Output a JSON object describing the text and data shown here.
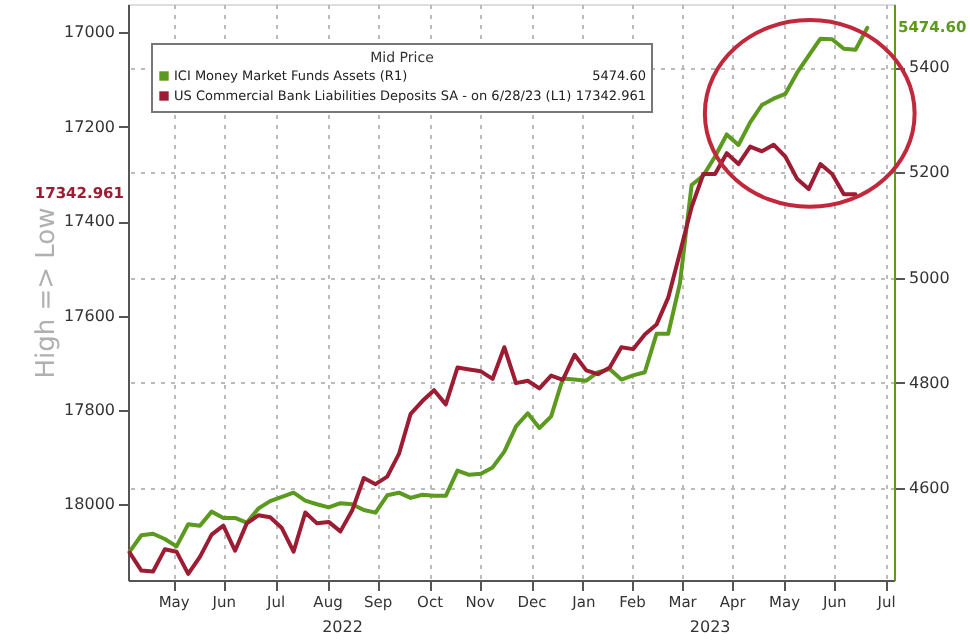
{
  "chart_data": {
    "type": "line",
    "ylabel": "High => Low",
    "legend_title": "Mid Price",
    "legend": "top left",
    "grid": true,
    "line_style": "solid",
    "x": [
      "2022-04-20",
      "2022-04-27",
      "2022-05-04",
      "2022-05-11",
      "2022-05-18",
      "2022-05-25",
      "2022-06-01",
      "2022-06-08",
      "2022-06-15",
      "2022-06-22",
      "2022-06-29",
      "2022-07-06",
      "2022-07-13",
      "2022-07-20",
      "2022-07-27",
      "2022-08-03",
      "2022-08-10",
      "2022-08-17",
      "2022-08-24",
      "2022-08-31",
      "2022-09-07",
      "2022-09-14",
      "2022-09-21",
      "2022-09-28",
      "2022-10-05",
      "2022-10-12",
      "2022-10-19",
      "2022-10-26",
      "2022-11-02",
      "2022-11-09",
      "2022-11-16",
      "2022-11-23",
      "2022-11-30",
      "2022-12-07",
      "2022-12-14",
      "2022-12-21",
      "2022-12-28",
      "2023-01-04",
      "2023-01-11",
      "2023-01-18",
      "2023-01-25",
      "2023-02-01",
      "2023-02-08",
      "2023-02-15",
      "2023-02-22",
      "2023-03-01",
      "2023-03-08",
      "2023-03-15",
      "2023-03-22",
      "2023-03-29",
      "2023-04-05",
      "2023-04-12",
      "2023-04-19",
      "2023-04-26",
      "2023-05-03",
      "2023-05-10",
      "2023-05-17",
      "2023-05-24",
      "2023-05-31",
      "2023-06-07",
      "2023-06-14",
      "2023-06-21",
      "2023-06-28",
      "2023-07-05"
    ],
    "series": [
      {
        "name": "ICI Money Market Funds Assets  (R1)",
        "color": "#5b9a1f",
        "axis": "y2",
        "values": [
          4479,
          4510,
          4513,
          4503,
          4489,
          4531,
          4528,
          4555,
          4543,
          4543,
          4534,
          4561,
          4575,
          4583,
          4591,
          4576,
          4569,
          4563,
          4571,
          4569,
          4558,
          4553,
          4586,
          4591,
          4581,
          4587,
          4585,
          4585,
          4633,
          4625,
          4627,
          4639,
          4669,
          4717,
          4742,
          4714,
          4736,
          4808,
          4806,
          4804,
          4820,
          4826,
          4806,
          4814,
          4820,
          4893,
          4893,
          4989,
          5176,
          5194,
          5230,
          5272,
          5252,
          5295,
          5328,
          5340,
          5349,
          5389,
          5422,
          5454,
          5453,
          5435,
          5433,
          5474.6
        ]
      },
      {
        "name": "US Commercial Bank Liabilities Deposits SA -  on 6/28/23  (L1)",
        "color": "#9b1c33",
        "values": [
          18102,
          18140,
          18142,
          18095,
          18100,
          18147,
          18111,
          18064,
          18045,
          18098,
          18040,
          18023,
          18027,
          18050,
          18100,
          18017,
          18040,
          18037,
          18057,
          18013,
          17944,
          17957,
          17941,
          17893,
          17808,
          17781,
          17758,
          17788,
          17710,
          17714,
          17718,
          17734,
          17667,
          17743,
          17738,
          17754,
          17727,
          17736,
          17683,
          17716,
          17724,
          17710,
          17667,
          17671,
          17640,
          17619,
          17562,
          17467,
          17370,
          17300,
          17300,
          17256,
          17279,
          17242,
          17252,
          17238,
          17263,
          17310,
          17332,
          17279,
          17300,
          17343,
          17342.961,
          null
        ]
      }
    ],
    "xlim": [
      "2022-04-19",
      "2023-07-21"
    ],
    "xticks": [
      {
        "value": "2022-05-16",
        "label": "May"
      },
      {
        "value": "2022-06-15",
        "label": "Jun"
      },
      {
        "value": "2022-07-16",
        "label": "Jul"
      },
      {
        "value": "2022-08-16",
        "label": "Aug"
      },
      {
        "value": "2022-09-15",
        "label": "Sep"
      },
      {
        "value": "2022-10-16",
        "label": "Oct"
      },
      {
        "value": "2022-11-15",
        "label": "Nov"
      },
      {
        "value": "2022-12-16",
        "label": "Dec"
      },
      {
        "value": "2023-01-16",
        "label": "Jan"
      },
      {
        "value": "2023-02-14",
        "label": "Feb"
      },
      {
        "value": "2023-03-16",
        "label": "Mar"
      },
      {
        "value": "2023-04-15",
        "label": "Apr"
      },
      {
        "value": "2023-05-16",
        "label": "May"
      },
      {
        "value": "2023-06-15",
        "label": "Jun"
      },
      {
        "value": "2023-07-16",
        "label": "Jul"
      }
    ],
    "ylim": [
      18160,
      16940
    ],
    "yticks": [
      17000,
      17200,
      17400,
      17600,
      17800,
      18000
    ],
    "y2lim": [
      4425,
      5520
    ],
    "y2ticks": [
      4600,
      4800,
      5000,
      5200,
      5400
    ],
    "annotations": [
      "5474.60",
      "17342.961",
      "2022",
      "2023"
    ]
  }
}
